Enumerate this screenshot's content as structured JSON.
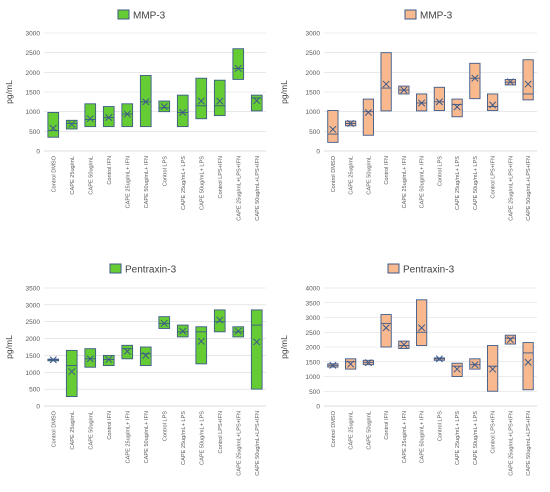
{
  "chart_data": [
    {
      "type": "box",
      "title": "MMP-3",
      "ylabel": "pg/mL",
      "ylim": [
        0,
        3000
      ],
      "yticks": [
        0,
        500,
        1000,
        1500,
        2000,
        2500,
        3000
      ],
      "grid": true,
      "legend": "top",
      "color": "#66cc33",
      "categories": [
        "Control DMSO",
        "CAPE 25ug/mL",
        "CAPE 50ug/mL",
        "Control IFN",
        "CAPE 25ug/mL+ IFN",
        "CAPE 50ug/mL+ IFN",
        "Control LPS",
        "CAPE 25ug/mL+ LPS",
        "CAPE 50ug/mL+ LPS",
        "Control LPS+IFN",
        "CAPE 25ug/mL+LPS+IFN",
        "CAPE 50ug/mL+LPS+IFN"
      ],
      "boxes": [
        {
          "low": 350,
          "high": 980,
          "median": 520,
          "mean": 580
        },
        {
          "low": 560,
          "high": 780,
          "median": 700,
          "mean": 680
        },
        {
          "low": 620,
          "high": 1200,
          "median": 800,
          "mean": 820
        },
        {
          "low": 620,
          "high": 1130,
          "median": 850,
          "mean": 850
        },
        {
          "low": 620,
          "high": 1200,
          "median": 940,
          "mean": 940
        },
        {
          "low": 620,
          "high": 1920,
          "median": 1250,
          "mean": 1250
        },
        {
          "low": 1000,
          "high": 1270,
          "median": 1100,
          "mean": 1130
        },
        {
          "low": 620,
          "high": 1420,
          "median": 980,
          "mean": 980
        },
        {
          "low": 820,
          "high": 1850,
          "median": 1150,
          "mean": 1270
        },
        {
          "low": 900,
          "high": 1800,
          "median": 1150,
          "mean": 1270
        },
        {
          "low": 1820,
          "high": 2600,
          "median": 2100,
          "mean": 2100
        },
        {
          "low": 1020,
          "high": 1420,
          "median": 1350,
          "mean": 1280
        }
      ]
    },
    {
      "type": "box",
      "title": "MMP-3",
      "ylabel": "pg/mL",
      "ylim": [
        0,
        3000
      ],
      "yticks": [
        0,
        500,
        1000,
        1500,
        2000,
        2500,
        3000
      ],
      "grid": true,
      "legend": "top",
      "color": "#f8b98f",
      "categories": [
        "Control DMSO",
        "CAPE 25ug/mL",
        "CAPE 50ug/mL",
        "Control IFN",
        "CAPE 25ug/mL+ IFN",
        "CAPE 50ug/mL+ IFN",
        "Control LPS",
        "CAPE 25ug/mL+ LPS",
        "CAPE 50ug/mL+ LPS",
        "Control LPS+IFN",
        "CAPE 25ug/mL+LPS+IFN",
        "CAPE 50ug/mL+LPS+IFN"
      ],
      "boxes": [
        {
          "low": 220,
          "high": 1030,
          "median": 430,
          "mean": 550
        },
        {
          "low": 640,
          "high": 760,
          "median": 700,
          "mean": 700
        },
        {
          "low": 400,
          "high": 1320,
          "median": 1000,
          "mean": 980
        },
        {
          "low": 1020,
          "high": 2500,
          "median": 1600,
          "mean": 1700
        },
        {
          "low": 1450,
          "high": 1650,
          "median": 1550,
          "mean": 1550
        },
        {
          "low": 1020,
          "high": 1450,
          "median": 1220,
          "mean": 1220
        },
        {
          "low": 1030,
          "high": 1620,
          "median": 1250,
          "mean": 1250
        },
        {
          "low": 870,
          "high": 1320,
          "median": 1180,
          "mean": 1120
        },
        {
          "low": 1330,
          "high": 2230,
          "median": 1850,
          "mean": 1850
        },
        {
          "low": 1030,
          "high": 1450,
          "median": 1130,
          "mean": 1170
        },
        {
          "low": 1680,
          "high": 1820,
          "median": 1750,
          "mean": 1760
        },
        {
          "low": 1300,
          "high": 2320,
          "median": 1450,
          "mean": 1700
        }
      ]
    },
    {
      "type": "box",
      "title": "Pentraxin-3",
      "ylabel": "pg/mL",
      "ylim": [
        0,
        3500
      ],
      "yticks": [
        0,
        500,
        1000,
        1500,
        2000,
        2500,
        3000,
        3500
      ],
      "grid": true,
      "legend": "top",
      "color": "#66cc33",
      "categories": [
        "Control DMSO",
        "CAPE 25ug/mL",
        "CAPE 50ug/mL",
        "Control IFN",
        "CAPE 25ug/mL+ IFN",
        "CAPE 50ug/mL+ IFN",
        "Control LPS",
        "CAPE 25ug/mL+ LPS",
        "CAPE 50ug/mL+ LPS",
        "Control LPS+IFN",
        "CAPE 25ug/mL+LPS+IFN",
        "CAPE 50ug/mL+LPS+IFN"
      ],
      "boxes": [
        {
          "low": 1340,
          "high": 1390,
          "median": 1370,
          "mean": 1370
        },
        {
          "low": 280,
          "high": 1650,
          "median": 1200,
          "mean": 1020
        },
        {
          "low": 1150,
          "high": 1700,
          "median": 1400,
          "mean": 1400
        },
        {
          "low": 1200,
          "high": 1500,
          "median": 1380,
          "mean": 1380
        },
        {
          "low": 1400,
          "high": 1800,
          "median": 1700,
          "mean": 1620
        },
        {
          "low": 1200,
          "high": 1750,
          "median": 1550,
          "mean": 1500
        },
        {
          "low": 2300,
          "high": 2650,
          "median": 2450,
          "mean": 2450
        },
        {
          "low": 2050,
          "high": 2400,
          "median": 2200,
          "mean": 2220
        },
        {
          "low": 1250,
          "high": 2350,
          "median": 2200,
          "mean": 1920
        },
        {
          "low": 2200,
          "high": 2850,
          "median": 2500,
          "mean": 2550
        },
        {
          "low": 2050,
          "high": 2350,
          "median": 2200,
          "mean": 2220
        },
        {
          "low": 500,
          "high": 2850,
          "median": 2400,
          "mean": 1900
        }
      ]
    },
    {
      "type": "box",
      "title": "Pentraxin-3",
      "ylabel": "pg/mL",
      "ylim": [
        0,
        4000
      ],
      "yticks": [
        0,
        500,
        1000,
        1500,
        2000,
        2500,
        3000,
        3500,
        4000
      ],
      "grid": true,
      "legend": "top",
      "color": "#f8b98f",
      "categories": [
        "Control DMSO",
        "CAPE 25ug/mL",
        "CAPE 50ug/mL",
        "Control IFN",
        "CAPE 25ug/mL+ IFN",
        "CAPE 50ug/mL+ IFN",
        "Control LPS",
        "CAPE 25ug/mL+ LPS",
        "CAPE 50ug/mL+ LPS",
        "Control LPS+IFN",
        "CAPE 25ug/mL+LPS+IFN",
        "CAPE 50ug/mL+LPS+IFN"
      ],
      "boxes": [
        {
          "low": 1320,
          "high": 1430,
          "median": 1380,
          "mean": 1380
        },
        {
          "low": 1250,
          "high": 1600,
          "median": 1500,
          "mean": 1420
        },
        {
          "low": 1400,
          "high": 1550,
          "median": 1480,
          "mean": 1470
        },
        {
          "low": 2000,
          "high": 3100,
          "median": 2800,
          "mean": 2650
        },
        {
          "low": 1950,
          "high": 2200,
          "median": 2050,
          "mean": 2080
        },
        {
          "low": 2050,
          "high": 3600,
          "median": 2500,
          "mean": 2650
        },
        {
          "low": 1550,
          "high": 1630,
          "median": 1600,
          "mean": 1600
        },
        {
          "low": 1000,
          "high": 1450,
          "median": 1350,
          "mean": 1250
        },
        {
          "low": 1250,
          "high": 1600,
          "median": 1400,
          "mean": 1400
        },
        {
          "low": 500,
          "high": 2050,
          "median": 1350,
          "mean": 1250
        },
        {
          "low": 2100,
          "high": 2400,
          "median": 2300,
          "mean": 2250
        },
        {
          "low": 550,
          "high": 2150,
          "median": 1800,
          "mean": 1480
        }
      ]
    }
  ]
}
